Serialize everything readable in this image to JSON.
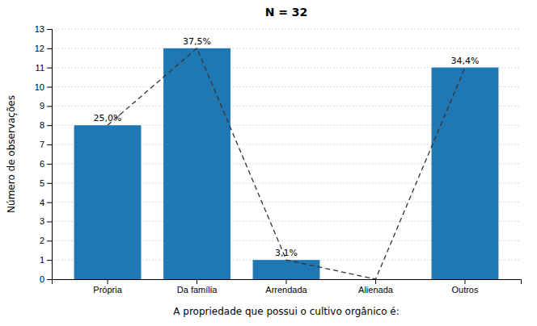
{
  "chart_data": {
    "type": "bar",
    "title": "N = 32",
    "xlabel": "A propriedade que possui o cultivo orgânico é:",
    "ylabel": "Número de observações",
    "categories": [
      "Própria",
      "Da família",
      "Arrendada",
      "Alienada",
      "Outros"
    ],
    "values": [
      8,
      12,
      1,
      0,
      11
    ],
    "percentages": [
      {
        "value": 25.0,
        "label": "25,0%"
      },
      {
        "value": 37.5,
        "label": "37,5%"
      },
      {
        "value": 3.1,
        "label": "3,1%"
      },
      null,
      {
        "value": 34.4,
        "label": "34,4%"
      }
    ],
    "line_style": "dashed",
    "ylim": [
      0,
      13
    ],
    "yticks": [
      0,
      1,
      2,
      3,
      4,
      5,
      6,
      7,
      8,
      9,
      10,
      11,
      12,
      13
    ],
    "grid": true
  }
}
